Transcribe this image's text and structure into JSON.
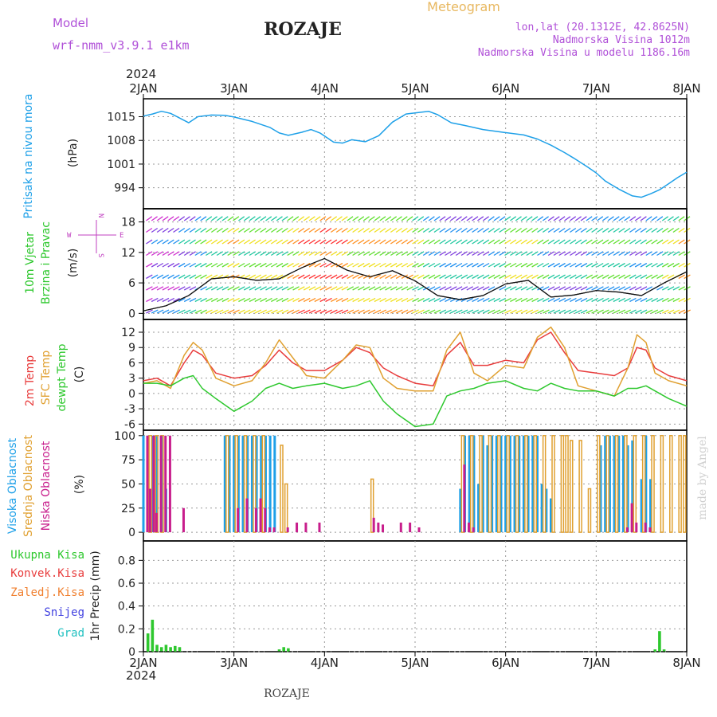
{
  "header": {
    "model_label": "Model",
    "model_name": "wrf-nmm_v3.9.1 e1km",
    "city": "ROZAJE",
    "meteogram": "Meteogram",
    "lonlat": "lon,lat (20.1312E, 42.8625N)",
    "altitude": "Nadmorska Visina 1012m",
    "model_altitude": "Nadmorska Visina u modelu 1186.16m"
  },
  "footer": {
    "city": "ROZAJE",
    "made_by": "made by Angel"
  },
  "time_axis": {
    "year": "2024",
    "ticks": [
      "2JAN",
      "3JAN",
      "4JAN",
      "5JAN",
      "6JAN",
      "7JAN",
      "8JAN"
    ]
  },
  "colors": {
    "pressure": "#1ea0e8",
    "temp2m": "#e83c3c",
    "sfc": "#e0a030",
    "dewpt": "#2ec82e",
    "cloud_high": "#1ea0e8",
    "cloud_mid": "#e0a030",
    "cloud_low": "#c81e8c",
    "precip_total": "#2ec82e",
    "precip_conv": "#e83c3c",
    "precip_frz": "#f08030",
    "precip_snow": "#4040e0",
    "precip_hail": "#20c0c0",
    "wind_side": "#c040c0"
  },
  "chart_data": [
    {
      "type": "line",
      "title": "",
      "ylabel": "(hPa)",
      "side_label": [
        "Pritisak na nivou mora"
      ],
      "yticks": [
        994,
        1001,
        1008,
        1015
      ],
      "ylim": [
        987.8,
        1020.3
      ],
      "x_range_days": [
        0,
        6
      ],
      "series": [
        {
          "name": "Pritisak na nivou mora",
          "x_days": [
            0,
            0.1,
            0.2,
            0.3,
            0.4,
            0.5,
            0.6,
            0.75,
            0.9,
            1.0,
            1.2,
            1.4,
            1.5,
            1.6,
            1.75,
            1.85,
            1.95,
            2.1,
            2.2,
            2.3,
            2.45,
            2.6,
            2.75,
            2.9,
            3.0,
            3.15,
            3.25,
            3.4,
            3.55,
            3.75,
            4.0,
            4.2,
            4.35,
            4.5,
            4.65,
            4.75,
            4.9,
            5.0,
            5.1,
            5.25,
            5.4,
            5.5,
            5.6,
            5.7,
            5.8,
            5.9,
            6.0
          ],
          "values": [
            1015.2,
            1015.8,
            1016.6,
            1016.0,
            1014.6,
            1013.2,
            1015.0,
            1015.5,
            1015.4,
            1014.9,
            1013.6,
            1011.8,
            1010.2,
            1009.5,
            1010.4,
            1011.2,
            1010.2,
            1007.5,
            1007.2,
            1008.2,
            1007.6,
            1009.4,
            1013.4,
            1015.8,
            1016.1,
            1016.6,
            1015.6,
            1013.2,
            1012.4,
            1011.2,
            1010.3,
            1009.6,
            1008.4,
            1006.6,
            1004.4,
            1002.8,
            1000.2,
            998.4,
            996.0,
            993.6,
            991.6,
            991.2,
            992.2,
            993.4,
            995.2,
            997.0,
            998.6
          ]
        }
      ]
    },
    {
      "type": "line",
      "title": "",
      "ylabel": "(m/s)",
      "side_label": [
        "10m Vjetar",
        "Brzina i Pravac"
      ],
      "yticks": [
        0,
        6,
        12,
        18
      ],
      "ylim": [
        -1.2,
        20.6
      ],
      "x_range_days": [
        0,
        6
      ],
      "direction_legend": [
        "N",
        "W",
        "E",
        "S"
      ],
      "series": [
        {
          "name": "Brzina",
          "x_days": [
            0,
            0.25,
            0.5,
            0.75,
            1.0,
            1.25,
            1.5,
            1.75,
            2.0,
            2.25,
            2.5,
            2.75,
            3.0,
            3.25,
            3.5,
            3.75,
            4.0,
            4.25,
            4.5,
            4.75,
            5.0,
            5.25,
            5.5,
            5.75,
            6.0
          ],
          "values": [
            0.5,
            1.5,
            3.5,
            6.8,
            7.2,
            6.5,
            6.8,
            9.0,
            10.8,
            8.5,
            7.2,
            8.4,
            6.4,
            3.5,
            2.7,
            3.5,
            5.8,
            6.5,
            3.2,
            3.6,
            4.5,
            4.2,
            3.5,
            6.0,
            8.2
          ]
        }
      ]
    },
    {
      "type": "line",
      "title": "",
      "ylabel": "(C)",
      "side_label": [
        "2m Temp",
        "SFC Temp",
        "dewpt Temp"
      ],
      "yticks": [
        -6,
        -3,
        0,
        3,
        6,
        9,
        12
      ],
      "ylim": [
        -7.2,
        14.5
      ],
      "x_range_days": [
        0,
        6
      ],
      "series": [
        {
          "name": "2m Temp",
          "x_days": [
            0,
            0.15,
            0.3,
            0.45,
            0.55,
            0.65,
            0.8,
            1.0,
            1.2,
            1.35,
            1.5,
            1.65,
            1.8,
            2.0,
            2.2,
            2.35,
            2.5,
            2.65,
            2.8,
            3.0,
            3.2,
            3.35,
            3.5,
            3.65,
            3.8,
            4.0,
            4.2,
            4.35,
            4.5,
            4.65,
            4.8,
            5.0,
            5.2,
            5.35,
            5.45,
            5.55,
            5.65,
            5.8,
            6.0
          ],
          "values": [
            2.5,
            3.0,
            1.5,
            6.0,
            8.5,
            7.5,
            4.0,
            3.0,
            3.5,
            5.5,
            8.5,
            6.0,
            4.5,
            4.5,
            6.5,
            9.0,
            8.0,
            5.0,
            3.5,
            2.0,
            1.5,
            7.5,
            10.0,
            5.5,
            5.5,
            6.5,
            6.0,
            10.5,
            12.0,
            8.0,
            4.5,
            4.0,
            3.5,
            5.0,
            9.0,
            8.5,
            5.0,
            3.5,
            2.5
          ]
        },
        {
          "name": "SFC Temp",
          "x_days": [
            0,
            0.15,
            0.3,
            0.45,
            0.55,
            0.65,
            0.8,
            1.0,
            1.2,
            1.35,
            1.5,
            1.65,
            1.8,
            2.0,
            2.2,
            2.35,
            2.5,
            2.65,
            2.8,
            3.0,
            3.2,
            3.35,
            3.5,
            3.65,
            3.8,
            4.0,
            4.2,
            4.35,
            4.5,
            4.65,
            4.8,
            5.0,
            5.2,
            5.35,
            5.45,
            5.55,
            5.65,
            5.8,
            6.0
          ],
          "values": [
            2.0,
            2.5,
            1.0,
            7.5,
            10.0,
            8.5,
            3.0,
            1.5,
            2.5,
            6.0,
            10.5,
            7.0,
            3.5,
            3.0,
            6.5,
            9.5,
            9.0,
            3.0,
            1.0,
            0.5,
            0.5,
            8.5,
            12.0,
            4.0,
            2.5,
            5.5,
            5.0,
            11.0,
            13.0,
            9.0,
            1.5,
            0.5,
            -0.5,
            5.0,
            11.5,
            10.0,
            4.0,
            2.5,
            1.5
          ]
        },
        {
          "name": "dewpt Temp",
          "x_days": [
            0,
            0.15,
            0.3,
            0.45,
            0.55,
            0.65,
            0.8,
            1.0,
            1.2,
            1.35,
            1.5,
            1.65,
            1.8,
            2.0,
            2.2,
            2.35,
            2.5,
            2.65,
            2.8,
            3.0,
            3.2,
            3.35,
            3.5,
            3.65,
            3.8,
            4.0,
            4.2,
            4.35,
            4.5,
            4.65,
            4.8,
            5.0,
            5.2,
            5.35,
            5.45,
            5.55,
            5.65,
            5.8,
            6.0
          ],
          "values": [
            2.0,
            2.0,
            1.5,
            3.0,
            3.5,
            1.0,
            -1.0,
            -3.5,
            -1.5,
            1.0,
            2.0,
            1.0,
            1.5,
            2.0,
            1.0,
            1.5,
            2.5,
            -1.5,
            -4.0,
            -6.5,
            -6.0,
            -0.5,
            0.5,
            1.0,
            2.0,
            2.5,
            1.0,
            0.5,
            2.0,
            1.0,
            0.5,
            0.5,
            -0.5,
            1.0,
            1.0,
            1.5,
            0.5,
            -1.0,
            -2.5
          ]
        }
      ]
    },
    {
      "type": "bar",
      "title": "",
      "ylabel": "(%)",
      "side_label": [
        "Visoka Oblacnost",
        "Srednja Oblacnost",
        "Niska Oblacnost"
      ],
      "yticks": [
        0,
        25,
        50,
        75,
        100
      ],
      "ylim": [
        -9,
        105.6
      ],
      "x_range_days": [
        0,
        6
      ],
      "series": [
        {
          "name": "Visoka Oblacnost",
          "x_days": [
            0.0,
            0.05,
            0.1,
            0.15,
            0.2,
            0.25,
            0.9,
            0.95,
            1.0,
            1.05,
            1.1,
            1.15,
            1.2,
            1.25,
            1.3,
            1.35,
            1.4,
            1.45,
            3.5,
            3.55,
            3.6,
            3.65,
            3.7,
            3.75,
            3.8,
            3.85,
            3.9,
            3.95,
            4.0,
            4.05,
            4.1,
            4.15,
            4.2,
            4.25,
            4.3,
            4.35,
            4.4,
            4.45,
            4.5,
            5.05,
            5.1,
            5.15,
            5.2,
            5.25,
            5.3,
            5.35,
            5.4,
            5.5,
            5.55,
            5.6
          ],
          "values": [
            100,
            100,
            100,
            100,
            100,
            45,
            100,
            100,
            100,
            100,
            100,
            100,
            100,
            100,
            100,
            100,
            100,
            100,
            45,
            100,
            100,
            100,
            50,
            100,
            90,
            100,
            100,
            100,
            100,
            100,
            100,
            100,
            100,
            100,
            100,
            100,
            50,
            45,
            35,
            90,
            100,
            100,
            100,
            100,
            100,
            90,
            95,
            55,
            100,
            55
          ]
        },
        {
          "name": "Srednja Oblacnost",
          "x_days": [
            0.05,
            0.12,
            0.18,
            0.9,
            1.0,
            1.1,
            1.2,
            1.3,
            1.5,
            1.55,
            2.5,
            3.5,
            3.6,
            3.7,
            3.8,
            3.9,
            4.0,
            4.1,
            4.2,
            4.3,
            4.4,
            4.5,
            4.6,
            4.65,
            4.7,
            4.8,
            4.9,
            5.0,
            5.1,
            5.2,
            5.3,
            5.4,
            5.5,
            5.6,
            5.7,
            5.8,
            5.9,
            5.95
          ],
          "values": [
            100,
            100,
            100,
            100,
            100,
            100,
            100,
            100,
            90,
            50,
            55,
            100,
            100,
            100,
            100,
            100,
            100,
            100,
            100,
            100,
            100,
            100,
            100,
            100,
            95,
            95,
            45,
            100,
            100,
            100,
            100,
            100,
            100,
            100,
            100,
            100,
            100,
            100
          ]
        },
        {
          "name": "Niska Oblacnost",
          "x_days": [
            0.0,
            0.03,
            0.07,
            0.1,
            0.15,
            0.2,
            0.25,
            0.4,
            1.0,
            1.1,
            1.2,
            1.25,
            1.3,
            1.35,
            1.4,
            1.55,
            1.65,
            1.75,
            1.9,
            2.5,
            2.55,
            2.6,
            2.8,
            2.9,
            3.0,
            3.5,
            3.55,
            3.6,
            5.3,
            5.35,
            5.4,
            5.5,
            5.55
          ],
          "values": [
            100,
            45,
            100,
            20,
            100,
            100,
            100,
            25,
            25,
            35,
            25,
            35,
            25,
            5,
            5,
            5,
            10,
            10,
            10,
            15,
            10,
            8,
            10,
            10,
            5,
            70,
            10,
            5,
            5,
            30,
            10,
            10,
            5
          ]
        }
      ]
    },
    {
      "type": "bar",
      "title": "",
      "ylabel": "1hr Precip (mm)",
      "side_label": [
        "Ukupna Kisa",
        "Konvek.Kisa",
        "Zaledj.Kisa",
        "Snijeg",
        "Grad"
      ],
      "yticks": [
        0,
        0.2,
        0.4,
        0.6,
        0.8
      ],
      "ylim": [
        0,
        0.97
      ],
      "x_range_days": [
        0,
        6
      ],
      "series": [
        {
          "name": "Ukupna Kisa",
          "x_days": [
            0.05,
            0.1,
            0.15,
            0.2,
            0.25,
            0.3,
            0.35,
            0.4,
            1.5,
            1.55,
            1.6,
            5.65,
            5.7,
            5.75
          ],
          "values": [
            0.16,
            0.28,
            0.06,
            0.04,
            0.06,
            0.04,
            0.05,
            0.04,
            0.02,
            0.04,
            0.03,
            0.02,
            0.18,
            0.02
          ]
        }
      ]
    }
  ]
}
